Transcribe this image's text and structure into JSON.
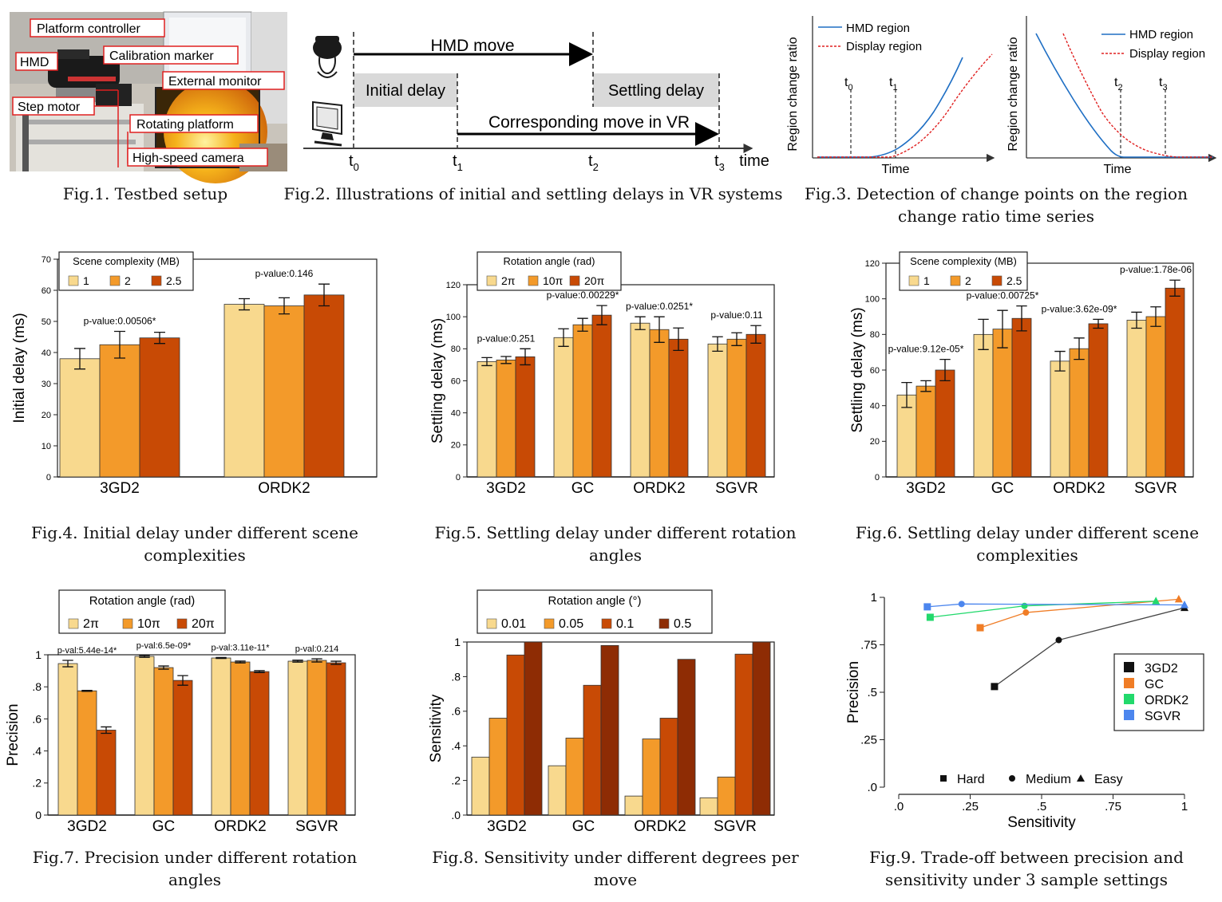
{
  "colors": {
    "c1": "#f8d98e",
    "c2": "#f39a2a",
    "c3": "#c84a05",
    "c4": "#8e2c04",
    "s3gd2": "#111111",
    "sgc": "#f07d26",
    "sordk2": "#22d96c",
    "ssgvr": "#4c86ee",
    "hmd_line": "#1f6fc4",
    "display_line": "#e02020"
  },
  "fig1": {
    "caption": "Fig.1. Testbed setup",
    "labels": [
      "Platform controller",
      "Calibration marker",
      "HMD",
      "External monitor",
      "Step motor",
      "Rotating platform",
      "High-speed camera"
    ]
  },
  "fig2": {
    "caption": "Fig.2. Illustrations of initial and settling delays in VR systems",
    "hmd_move": "HMD move",
    "initial_delay": "Initial delay",
    "settling_delay": "Settling delay",
    "vr_move": "Corresponding move in VR",
    "axis": "time",
    "ticks": [
      "t",
      "t",
      "t",
      "t"
    ],
    "tick_subs": [
      "0",
      "1",
      "2",
      "3"
    ]
  },
  "fig3": {
    "caption": "Fig.3. Detection of change points on the region",
    "caption2": "change ratio time series",
    "ylabel": "Region change ratio",
    "xlabel": "Time",
    "legend": [
      "HMD region",
      "Display region"
    ],
    "left_ticks": [
      "t",
      "t"
    ],
    "left_subs": [
      "0",
      "1"
    ],
    "right_ticks": [
      "t",
      "t"
    ],
    "right_subs": [
      "2",
      "3"
    ]
  },
  "chart_data": [
    {
      "id": "fig4",
      "type": "bar",
      "caption": "Fig.4. Initial delay under different scene",
      "caption2": "complexities",
      "ylabel": "Initial delay (ms)",
      "ylim": [
        0,
        70
      ],
      "yticks": [
        "0",
        "10",
        "20",
        "30",
        "40",
        "50",
        "60",
        "70"
      ],
      "categories": [
        "3GD2",
        "ORDK2"
      ],
      "legend_title": "Scene complexity (MB)",
      "series": [
        {
          "name": "1",
          "values": [
            38,
            55.5
          ],
          "err": [
            3.3,
            1.8
          ]
        },
        {
          "name": "2",
          "values": [
            42.5,
            55
          ],
          "err": [
            4.3,
            2.6
          ]
        },
        {
          "name": "2.5",
          "values": [
            44.7,
            58.5
          ],
          "err": [
            1.8,
            3.5
          ]
        }
      ],
      "annotations": [
        "p-value:0.00506*",
        "p-value:0.146"
      ]
    },
    {
      "id": "fig5",
      "type": "bar",
      "caption": "Fig.5. Settling delay under different rotation",
      "caption2": "angles",
      "ylabel": "Settling delay (ms)",
      "ylim": [
        0,
        120
      ],
      "yticks": [
        "0",
        "20",
        "40",
        "60",
        "80",
        "100",
        "120"
      ],
      "categories": [
        "3GD2",
        "GC",
        "ORDK2",
        "SGVR"
      ],
      "legend_title": "Rotation angle (rad)",
      "series": [
        {
          "name": "2π",
          "values": [
            72,
            87,
            96,
            83
          ],
          "err": [
            2.5,
            5.5,
            4,
            4.5
          ]
        },
        {
          "name": "10π",
          "values": [
            73,
            95,
            92,
            86
          ],
          "err": [
            2.2,
            4,
            8,
            4
          ]
        },
        {
          "name": "20π",
          "values": [
            75,
            101,
            86,
            89
          ],
          "err": [
            5,
            6,
            7,
            5.5
          ]
        }
      ],
      "annotations": [
        "p-value:0.251",
        "p-value:0.00229*",
        "p-value:0.0251*",
        "p-value:0.11"
      ]
    },
    {
      "id": "fig6",
      "type": "bar",
      "caption": "Fig.6. Settling delay under different scene",
      "caption2": "complexities",
      "ylabel": "Settling delay (ms)",
      "ylim": [
        0,
        120
      ],
      "yticks": [
        "0",
        "20",
        "40",
        "60",
        "80",
        "100",
        "120"
      ],
      "categories": [
        "3GD2",
        "GC",
        "ORDK2",
        "SGVR"
      ],
      "legend_title": "Scene complexity (MB)",
      "series": [
        {
          "name": "1",
          "values": [
            46,
            80,
            65,
            88
          ],
          "err": [
            7,
            8.5,
            5.5,
            4.5
          ]
        },
        {
          "name": "2",
          "values": [
            51,
            83,
            72,
            90
          ],
          "err": [
            3,
            10.5,
            6,
            5.5
          ]
        },
        {
          "name": "2.5",
          "values": [
            60,
            89,
            86,
            106
          ],
          "err": [
            6,
            7,
            2.5,
            4.5
          ]
        }
      ],
      "annotations": [
        "p-value:9.12e-05*",
        "p-value:0.00725*",
        "p-value:3.62e-09*",
        "p-value:1.78e-06"
      ]
    },
    {
      "id": "fig7",
      "type": "bar",
      "caption": "Fig.7. Precision under different rotation",
      "caption2": "angles",
      "ylabel": "Precision",
      "ylim": [
        0,
        1
      ],
      "yticks": [
        "0",
        ".2",
        ".4",
        ".6",
        ".8",
        "1"
      ],
      "categories": [
        "3GD2",
        "GC",
        "ORDK2",
        "SGVR"
      ],
      "legend_title": "Rotation angle (rad)",
      "series": [
        {
          "name": "2π",
          "values": [
            0.945,
            0.99,
            0.98,
            0.96
          ],
          "err": [
            0.02,
            0.006,
            0.003,
            0.006
          ]
        },
        {
          "name": "10π",
          "values": [
            0.775,
            0.92,
            0.955,
            0.965
          ],
          "err": [
            0.003,
            0.01,
            0.006,
            0.01
          ]
        },
        {
          "name": "20π",
          "values": [
            0.53,
            0.84,
            0.895,
            0.95
          ],
          "err": [
            0.02,
            0.03,
            0.006,
            0.01
          ]
        }
      ],
      "annotations": [
        "p-val:5.44e-14*",
        "p-val:6.5e-09*",
        "p-val:3.11e-11*",
        "p-val:0.214"
      ]
    },
    {
      "id": "fig8",
      "type": "bar",
      "caption": "Fig.8. Sensitivity under different degrees per",
      "caption2": "move",
      "ylabel": "Sensitivity",
      "ylim": [
        0,
        1
      ],
      "yticks": [
        ".0",
        ".2",
        ".4",
        ".6",
        ".8",
        "1"
      ],
      "categories": [
        "3GD2",
        "GC",
        "ORDK2",
        "SGVR"
      ],
      "legend_title": "Rotation angle (°)",
      "series": [
        {
          "name": "0.01",
          "values": [
            0.335,
            0.285,
            0.11,
            0.1
          ]
        },
        {
          "name": "0.05",
          "values": [
            0.56,
            0.445,
            0.44,
            0.22
          ]
        },
        {
          "name": "0.1",
          "values": [
            0.925,
            0.75,
            0.56,
            0.93
          ]
        },
        {
          "name": "0.5",
          "values": [
            1.0,
            0.98,
            0.9,
            1.0
          ]
        }
      ]
    },
    {
      "id": "fig9",
      "type": "line",
      "caption": "Fig.9. Trade-off between precision and",
      "caption2": "sensitivity under 3 sample settings",
      "xlabel": "Sensitivity",
      "ylabel": "Precision",
      "xlim": [
        0,
        1
      ],
      "ylim": [
        0,
        1
      ],
      "xticks": [
        ".0",
        ".25",
        ".5",
        ".75",
        "1"
      ],
      "yticks": [
        ".0",
        ".25",
        ".5",
        ".75",
        "1"
      ],
      "series": [
        {
          "name": "3GD2",
          "x": [
            0.335,
            0.56,
            1.0
          ],
          "y": [
            0.53,
            0.775,
            0.945
          ]
        },
        {
          "name": "GC",
          "x": [
            0.285,
            0.445,
            0.98
          ],
          "y": [
            0.84,
            0.92,
            0.99
          ]
        },
        {
          "name": "ORDK2",
          "x": [
            0.11,
            0.44,
            0.9
          ],
          "y": [
            0.895,
            0.955,
            0.98
          ]
        },
        {
          "name": "SGVR",
          "x": [
            0.1,
            0.22,
            1.0
          ],
          "y": [
            0.95,
            0.965,
            0.96
          ]
        }
      ],
      "marker_legend": [
        "Hard",
        "Medium",
        "Easy"
      ]
    }
  ]
}
